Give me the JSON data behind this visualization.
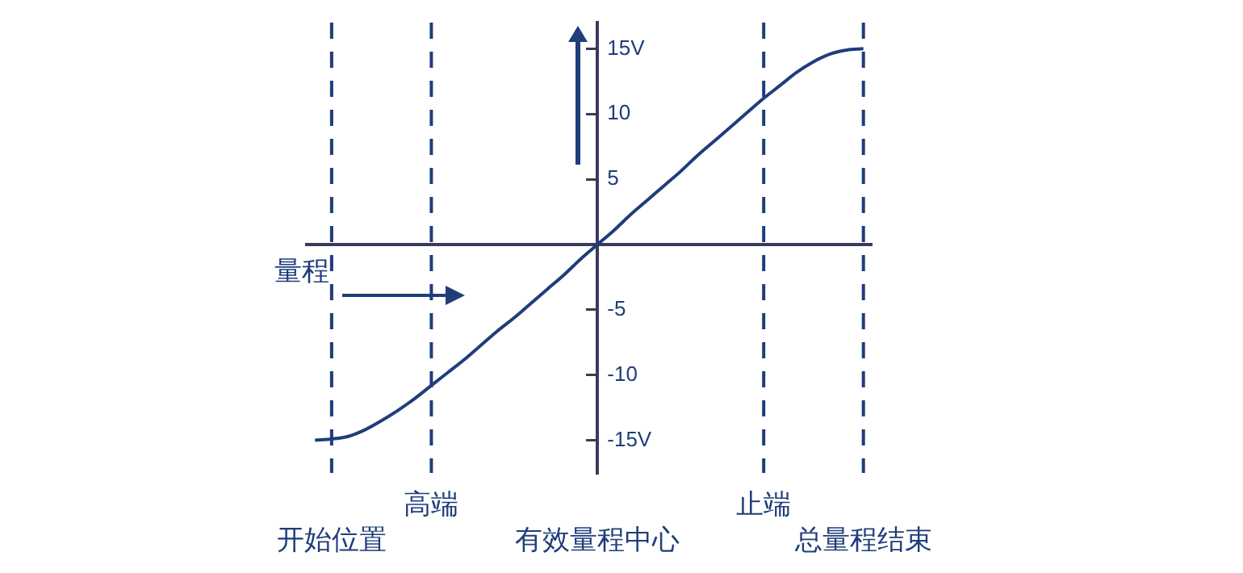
{
  "chart_data": {
    "type": "line",
    "categories": [
      null,
      "开始位置",
      null,
      null,
      null,
      null,
      null,
      "高端",
      null,
      null,
      null,
      null,
      null,
      null,
      null,
      null,
      null,
      "有效量程中心",
      null,
      null,
      null,
      null,
      null,
      null,
      null,
      null,
      null,
      "止端",
      null,
      null,
      null,
      null,
      null,
      "总量程结束"
    ],
    "series": [
      {
        "color": "#1f3d7a",
        "values": [
          -15,
          -14.9,
          -14.7,
          -14.2,
          -13.5,
          -12.7,
          -11.8,
          -10.8,
          -9.8,
          -8.8,
          -7.7,
          -6.6,
          -5.6,
          -4.5,
          -3.4,
          -2.3,
          -1.1,
          0,
          1.1,
          2.3,
          3.4,
          4.5,
          5.6,
          6.8,
          7.9,
          9.0,
          10.1,
          11.2,
          12.2,
          13.2,
          14.0,
          14.6,
          14.9,
          15
        ]
      }
    ],
    "ylim": [
      -17.5,
      17
    ],
    "yticks": [
      {
        "value": -15,
        "label": "-15V"
      },
      -10,
      -5,
      5,
      10,
      {
        "value": 15,
        "label": "15V"
      }
    ],
    "ref_lines": [
      {
        "axis": "x",
        "value": "开始位置",
        "line_style": "dashed"
      },
      {
        "axis": "x",
        "value": "高端",
        "line_style": "dashed"
      },
      {
        "axis": "x",
        "value": "止端",
        "line_style": "dashed"
      },
      {
        "axis": "x",
        "value": "总量程结束",
        "line_style": "dashed"
      }
    ],
    "annotations": [
      "量程"
    ],
    "grid": false,
    "legend": false,
    "marker": "none",
    "line_style": "solid"
  }
}
